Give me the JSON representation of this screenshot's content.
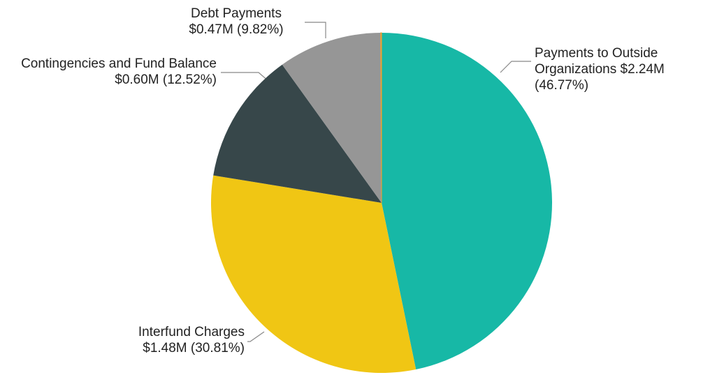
{
  "chart_data": {
    "type": "pie",
    "categories": [
      "Payments to Outside Organizations",
      "Interfund Charges",
      "Contingencies and Fund Balance",
      "Debt Payments",
      null
    ],
    "values": [
      46.77,
      30.81,
      12.52,
      9.82,
      0.08
    ],
    "value_labels": [
      "$2.24M (46.77%)",
      "$1.48M (30.81%)",
      "$0.60M (12.52%)",
      "$0.47M (9.82%)",
      null
    ],
    "colors": [
      "#17b8a6",
      "#f0c614",
      "#37474a",
      "#969696",
      "#f0a030"
    ]
  }
}
